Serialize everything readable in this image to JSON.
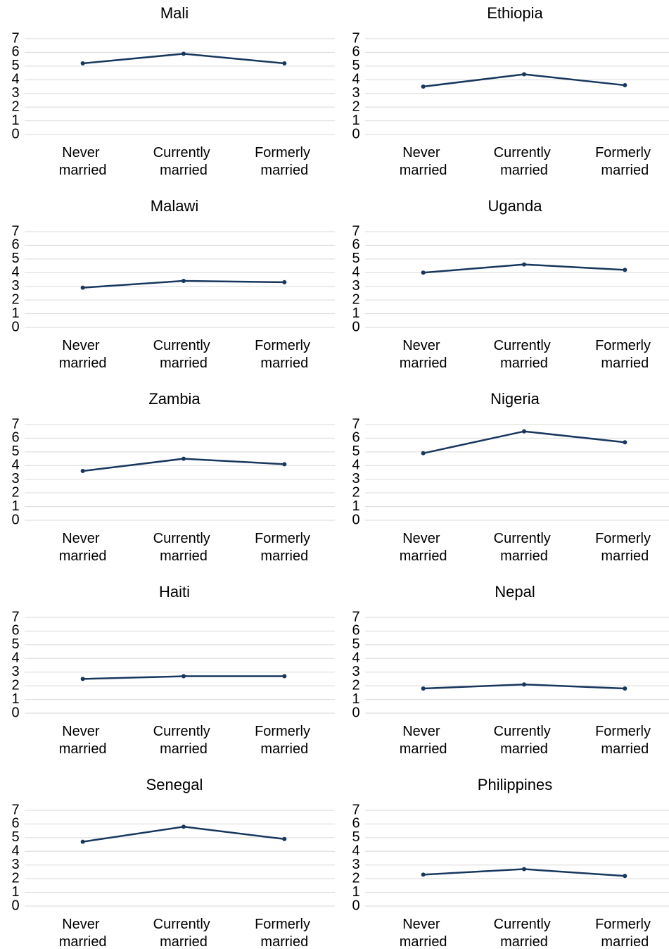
{
  "chart_data": [
    {
      "type": "line",
      "title": "Mali",
      "categories": [
        "Never married",
        "Currently married",
        "Formerly married"
      ],
      "values": [
        5.2,
        5.9,
        5.2
      ],
      "color": "#17375e",
      "ylim": [
        0,
        7
      ],
      "yticks": [
        0,
        1,
        2,
        3,
        4,
        5,
        6,
        7
      ],
      "grid": true
    },
    {
      "type": "line",
      "title": "Ethiopia",
      "categories": [
        "Never married",
        "Currently married",
        "Formerly married"
      ],
      "values": [
        3.5,
        4.4,
        3.6
      ],
      "color": "#17375e",
      "ylim": [
        0,
        7
      ],
      "yticks": [
        0,
        1,
        2,
        3,
        4,
        5,
        6,
        7
      ],
      "grid": true
    },
    {
      "type": "line",
      "title": "Malawi",
      "categories": [
        "Never married",
        "Currently married",
        "Formerly married"
      ],
      "values": [
        2.9,
        3.4,
        3.3
      ],
      "color": "#17375e",
      "ylim": [
        0,
        7
      ],
      "yticks": [
        0,
        1,
        2,
        3,
        4,
        5,
        6,
        7
      ],
      "grid": true
    },
    {
      "type": "line",
      "title": "Uganda",
      "categories": [
        "Never married",
        "Currently married",
        "Formerly married"
      ],
      "values": [
        4.0,
        4.6,
        4.2
      ],
      "color": "#17375e",
      "ylim": [
        0,
        7
      ],
      "yticks": [
        0,
        1,
        2,
        3,
        4,
        5,
        6,
        7
      ],
      "grid": true
    },
    {
      "type": "line",
      "title": "Zambia",
      "categories": [
        "Never married",
        "Currently married",
        "Formerly married"
      ],
      "values": [
        3.6,
        4.5,
        4.1
      ],
      "color": "#17375e",
      "ylim": [
        0,
        7
      ],
      "yticks": [
        0,
        1,
        2,
        3,
        4,
        5,
        6,
        7
      ],
      "grid": true
    },
    {
      "type": "line",
      "title": "Nigeria",
      "categories": [
        "Never married",
        "Currently married",
        "Formerly married"
      ],
      "values": [
        4.9,
        6.5,
        5.7
      ],
      "color": "#17375e",
      "ylim": [
        0,
        7
      ],
      "yticks": [
        0,
        1,
        2,
        3,
        4,
        5,
        6,
        7
      ],
      "grid": true
    },
    {
      "type": "line",
      "title": "Haiti",
      "categories": [
        "Never married",
        "Currently married",
        "Formerly married"
      ],
      "values": [
        2.5,
        2.7,
        2.7
      ],
      "color": "#17375e",
      "ylim": [
        0,
        7
      ],
      "yticks": [
        0,
        1,
        2,
        3,
        4,
        5,
        6,
        7
      ],
      "grid": true
    },
    {
      "type": "line",
      "title": "Nepal",
      "categories": [
        "Never married",
        "Currently married",
        "Formerly married"
      ],
      "values": [
        1.8,
        2.1,
        1.8
      ],
      "color": "#17375e",
      "ylim": [
        0,
        7
      ],
      "yticks": [
        0,
        1,
        2,
        3,
        4,
        5,
        6,
        7
      ],
      "grid": true
    },
    {
      "type": "line",
      "title": "Senegal",
      "categories": [
        "Never married",
        "Currently married",
        "Formerly married"
      ],
      "values": [
        4.7,
        5.8,
        4.9
      ],
      "color": "#17375e",
      "ylim": [
        0,
        7
      ],
      "yticks": [
        0,
        1,
        2,
        3,
        4,
        5,
        6,
        7
      ],
      "grid": true
    },
    {
      "type": "line",
      "title": "Philippines",
      "categories": [
        "Never married",
        "Currently married",
        "Formerly married"
      ],
      "values": [
        2.3,
        2.7,
        2.2
      ],
      "color": "#17375e",
      "ylim": [
        0,
        7
      ],
      "yticks": [
        0,
        1,
        2,
        3,
        4,
        5,
        6,
        7
      ],
      "grid": true
    }
  ]
}
